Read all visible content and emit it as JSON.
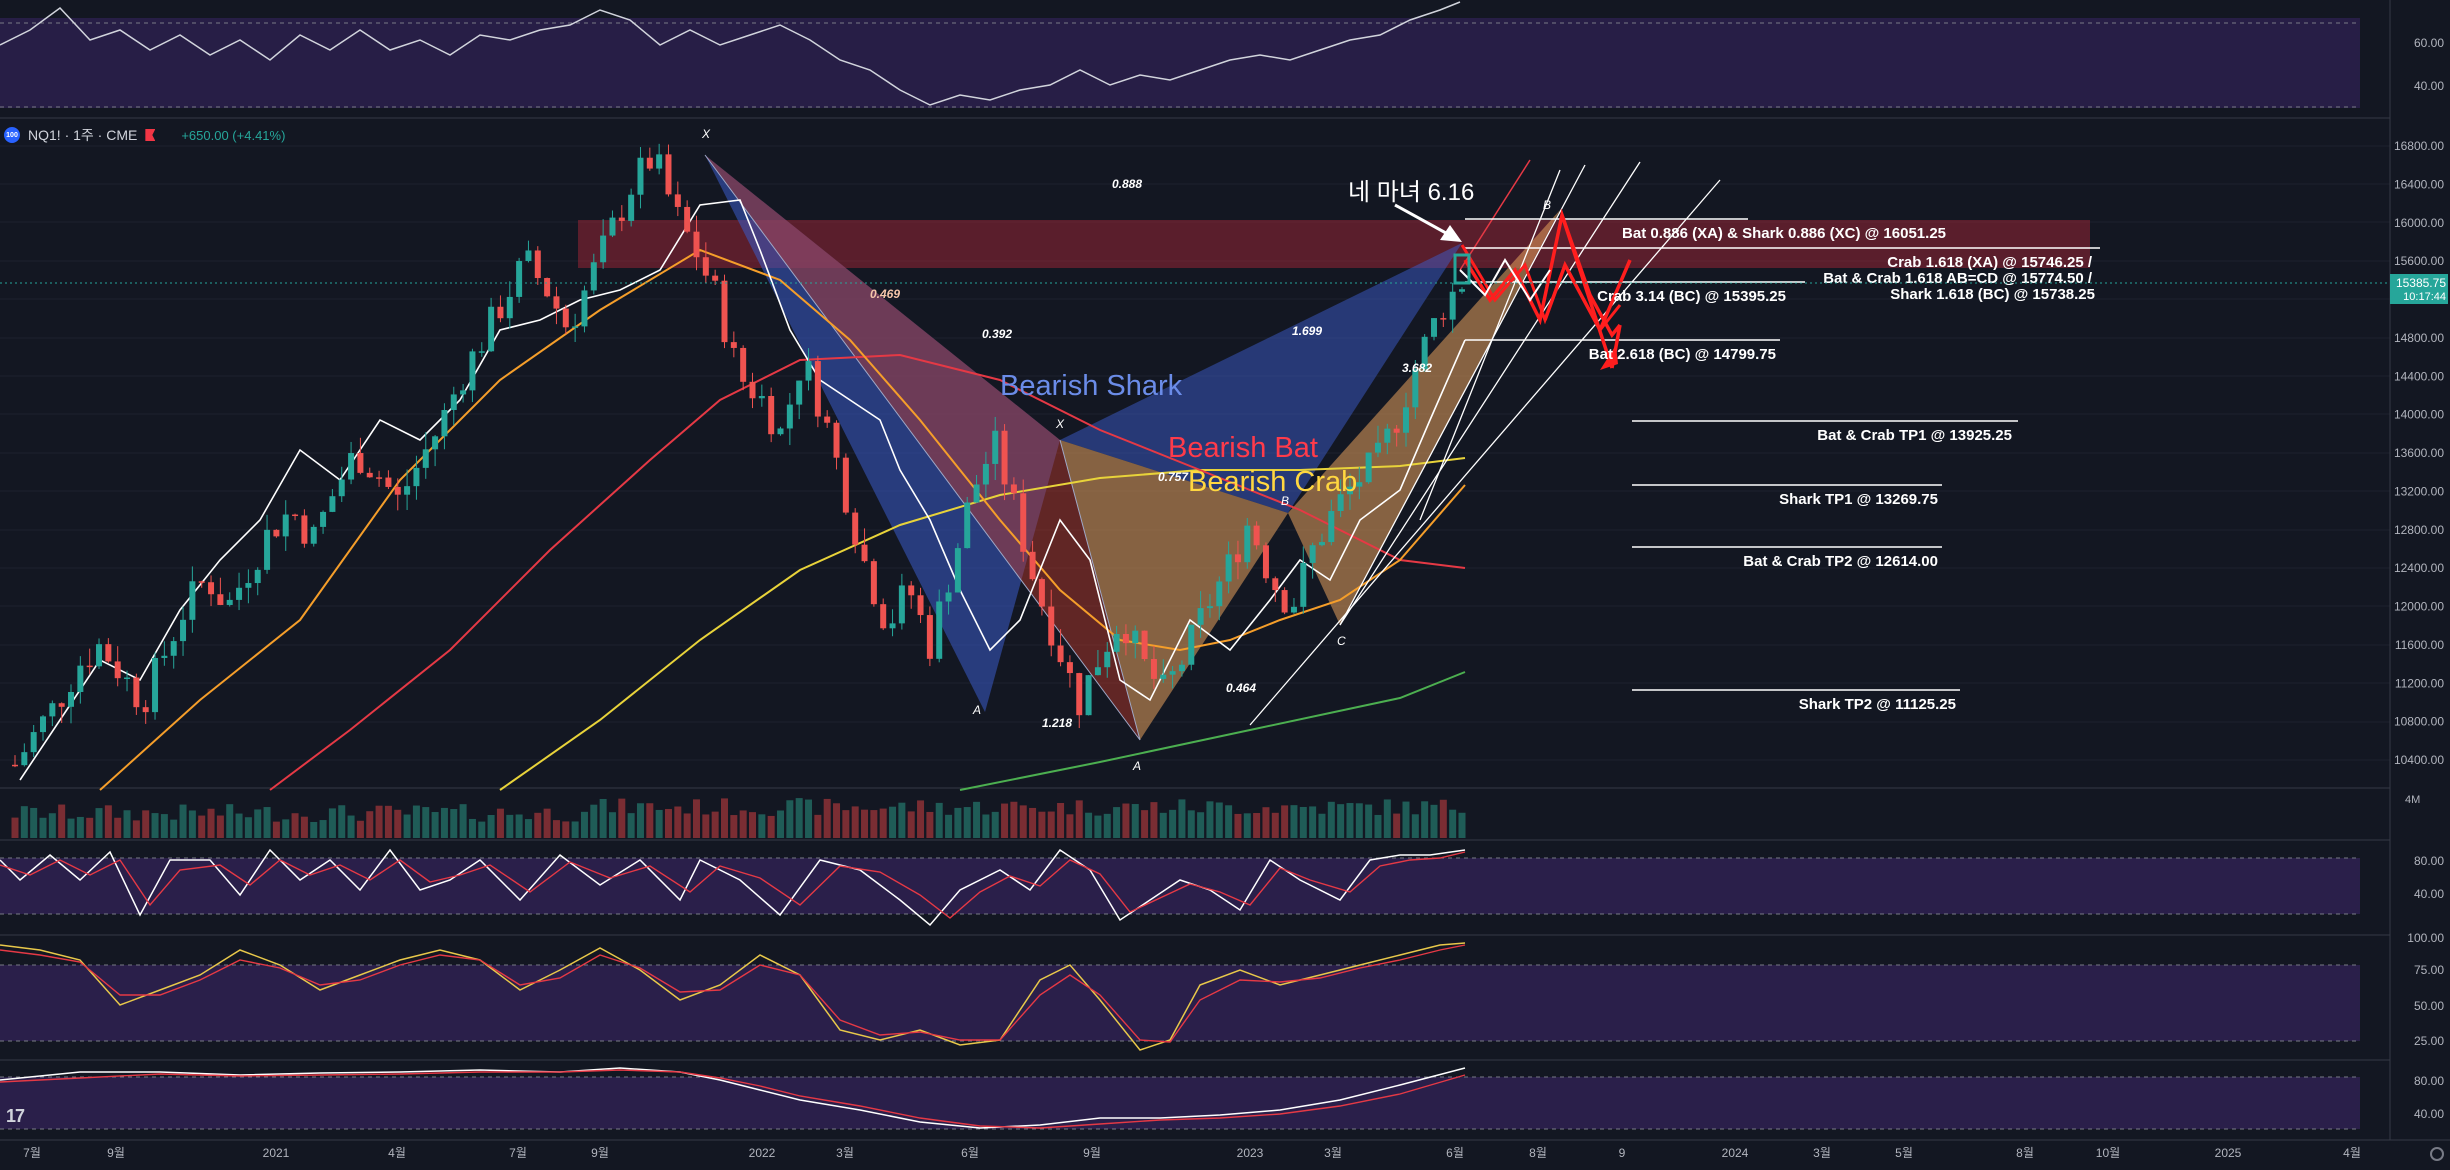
{
  "header": {
    "symbol": "NQ1! · 1주 · CME",
    "change": "+650.00 (+4.41%)",
    "symbol_icon": "100"
  },
  "price_scale": {
    "ticks": [
      16800,
      16400,
      16000,
      15600,
      15200,
      14800,
      14400,
      14000,
      13600,
      13200,
      12800,
      12400,
      12000,
      11600,
      11200,
      10800,
      10400
    ],
    "last_price": "15385.75",
    "countdown": "10:17:44"
  },
  "time_axis": [
    "7월",
    "9월",
    "2021",
    "4월",
    "7월",
    "9월",
    "2022",
    "3월",
    "6월",
    "9월",
    "2023",
    "3월",
    "6월",
    "8월",
    "9",
    "2024",
    "3월",
    "5월",
    "8월",
    "10월",
    "2025",
    "4월"
  ],
  "panes": {
    "top_indicator_ticks": [
      "60.00",
      "40.00"
    ],
    "volume_label": "4M",
    "stoch1_ticks": [
      "80.00",
      "40.00"
    ],
    "stoch2_ticks": [
      "100.00",
      "75.00",
      "50.00",
      "25.00"
    ],
    "stoch3_ticks": [
      "80.00",
      "40.00"
    ]
  },
  "annotations": {
    "title_note": "네 마녀 6.16",
    "pattern_shark": "Bearish Shark",
    "pattern_bat": "Bearish Bat",
    "pattern_crab": "Bearish Crab",
    "ratio_0888": "0.888",
    "ratio_0469": "0.469",
    "ratio_0392": "0.392",
    "ratio_1699": "1.699",
    "ratio_3682": "3.682",
    "ratio_0757": "0.757",
    "ratio_0464": "0.464",
    "ratio_1218": "1.218",
    "pt_x1": "X",
    "pt_x2": "X",
    "pt_a1": "A",
    "pt_a2": "A",
    "pt_b1": "B",
    "pt_b2": "B",
    "pt_c": "C",
    "lvl_bat_shark": "Bat 0.886 (XA) & Shark 0.886 (XC) @ 16051.25",
    "lvl_crab_line1": "Crab 1.618 (XA) @ 15746.25 /",
    "lvl_crab_line2": "Bat & Crab 1.618 AB=CD @ 15774.50 /",
    "lvl_crab_line3": "Shark 1.618 (BC) @ 15738.25",
    "lvl_crab314": "Crab 3.14 (BC) @ 15395.25",
    "lvl_bat2618": "Bat 2.618 (BC) @ 14799.75",
    "tp_batcrab1": "Bat & Crab TP1 @ 13925.25",
    "tp_shark1": "Shark TP1 @ 13269.75",
    "tp_batcrab2": "Bat & Crab TP2 @ 12614.00",
    "tp_shark2": "Shark TP2 @ 11125.25"
  },
  "colors": {
    "background": "#131722",
    "up": "#26a69a",
    "down": "#ef5350",
    "shark": "#5b7fd6",
    "bat": "#e53945",
    "crab": "#ffd54f",
    "indicator_band": "#2a1f4a"
  },
  "chart_data": {
    "type": "candlestick",
    "y_axis_range": [
      10200,
      17000
    ],
    "levels": [
      {
        "name": "Bat 0.886 (XA) & Shark 0.886 (XC)",
        "price": 16051.25
      },
      {
        "name": "Crab 1.618 (XA)",
        "price": 15746.25
      },
      {
        "name": "Bat & Crab 1.618 AB=CD",
        "price": 15774.5
      },
      {
        "name": "Shark 1.618 (BC)",
        "price": 15738.25
      },
      {
        "name": "Crab 3.14 (BC)",
        "price": 15395.25
      },
      {
        "name": "Bat 2.618 (BC)",
        "price": 14799.75
      },
      {
        "name": "Bat & Crab TP1",
        "price": 13925.25
      },
      {
        "name": "Shark TP1",
        "price": 13269.75
      },
      {
        "name": "Bat & Crab TP2",
        "price": 12614.0
      },
      {
        "name": "Shark TP2",
        "price": 11125.25
      }
    ],
    "close_path": [
      10350,
      10700,
      11000,
      11400,
      11600,
      11300,
      11000,
      11500,
      12000,
      12300,
      12000,
      12400,
      12800,
      13000,
      12700,
      13200,
      13600,
      13400,
      13100,
      13500,
      13900,
      14400,
      14800,
      15200,
      15600,
      15300,
      14900,
      15400,
      15900,
      16400,
      16700,
      16100,
      15700,
      15200,
      14400,
      14200,
      13800,
      14600,
      14000,
      13200,
      12400,
      11800,
      12200,
      11600,
      12400,
      13200,
      13700,
      13000,
      12200,
      11600,
      11000,
      11500,
      11900,
      11400,
      11100,
      11500,
      12000,
      12400,
      12900,
      12300,
      12000,
      12600,
      13000,
      13300,
      13500,
      14000,
      14600,
      15100,
      15385.75
    ]
  }
}
